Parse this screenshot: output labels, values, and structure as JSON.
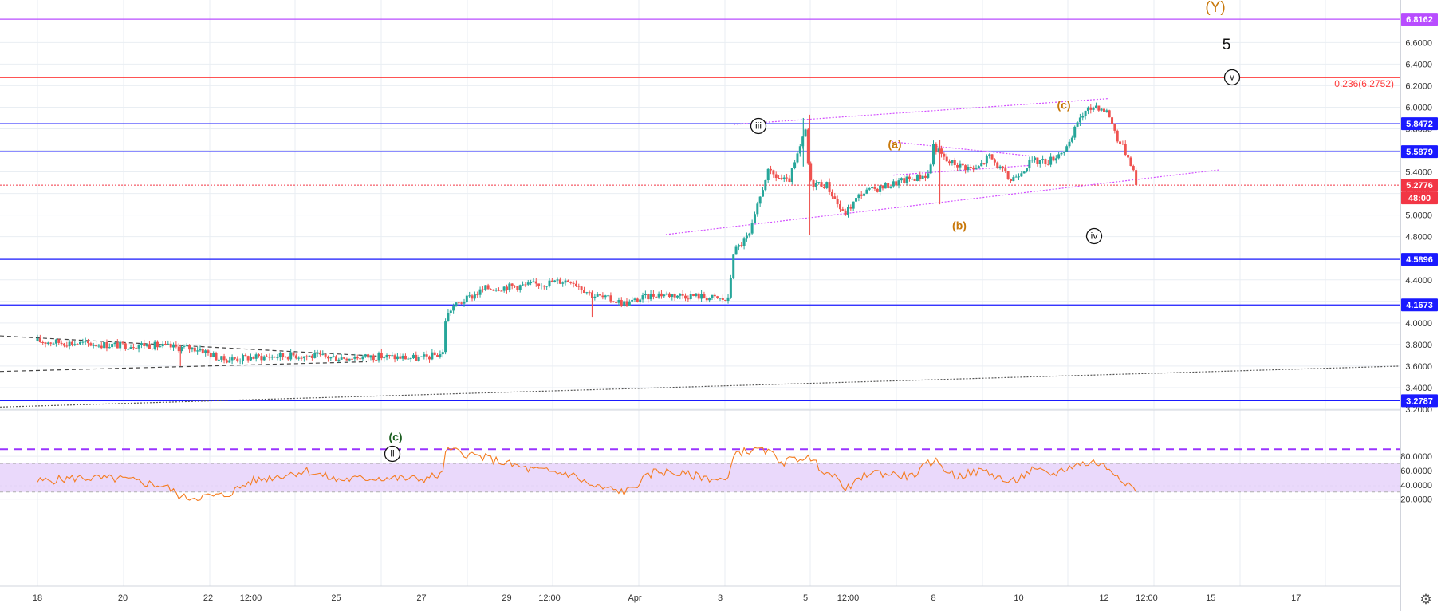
{
  "colors": {
    "up": "#26a69a",
    "down": "#ef5350",
    "level_blue": "#1a1aff",
    "level_red": "#ff3b3b",
    "level_purple": "#b84dff",
    "rsi_line": "#f57c20",
    "rsi_band": "#ead9fb",
    "wave_orange": "#c8780a",
    "trendline_magenta": "#d24dff",
    "grid": "#e9eef3",
    "last_price": "#f23645"
  },
  "icons": {
    "settings": "gear-icon"
  },
  "price_axis": {
    "min": 3.2,
    "max": 6.8,
    "ticks": [
      "3.2000",
      "3.4000",
      "3.6000",
      "3.8000",
      "4.0000",
      "4.2000",
      "4.4000",
      "4.6000",
      "4.8000",
      "5.0000",
      "5.2000",
      "5.4000",
      "5.6000",
      "5.8000",
      "6.0000",
      "6.2000",
      "6.4000",
      "6.6000"
    ]
  },
  "rsi_axis": {
    "min": 15,
    "max": 95,
    "ticks": [
      "20.0000",
      "40.0000",
      "60.0000",
      "80.0000"
    ]
  },
  "levels": [
    {
      "label": "6.8162",
      "value": 6.8162,
      "color": "#b84dff",
      "text_color": "#ffffff"
    },
    {
      "label": "5.8472",
      "value": 5.8472,
      "color": "#1a1aff",
      "text_color": "#ffffff"
    },
    {
      "label": "5.5879",
      "value": 5.5879,
      "color": "#1a1aff",
      "text_color": "#ffffff"
    },
    {
      "label": "4.5896",
      "value": 4.5896,
      "color": "#1a1aff",
      "text_color": "#ffffff"
    },
    {
      "label": "4.1673",
      "value": 4.1673,
      "color": "#1a1aff",
      "text_color": "#ffffff"
    },
    {
      "label": "3.2787",
      "value": 3.2787,
      "color": "#1a1aff",
      "text_color": "#ffffff"
    }
  ],
  "fib_level": {
    "value": 6.2752,
    "label": "0.236(6.2752)"
  },
  "last_price": {
    "value": 5.2776,
    "label": "5.2776",
    "countdown": "48:00"
  },
  "time_axis": {
    "labels": [
      "18",
      "20",
      "22",
      "12:00",
      "25",
      "27",
      "29",
      "12:00",
      "Apr",
      "3",
      "5",
      "12:00",
      "8",
      "10",
      "12",
      "12:00",
      "15",
      "17"
    ],
    "positions": [
      0.5,
      2.5,
      4.5,
      5.5,
      7.5,
      9.5,
      11.5,
      12.5,
      14.5,
      16.5,
      18.5,
      19.5,
      21.5,
      23.5,
      25.5,
      26.5,
      28.0,
      30.0
    ]
  },
  "wave_labels": {
    "Y": "(Y)",
    "five": "5",
    "v": "v",
    "iii": "iii",
    "iv": "iv",
    "ii": "ii",
    "a": "(a)",
    "b": "(b)",
    "c_top": "(c)",
    "c_bottom": "(c)"
  },
  "chart_data": {
    "type": "candlestick",
    "price_panel": {
      "ylim": [
        3.2,
        6.8
      ],
      "grid": true,
      "path_keypoints": [
        {
          "t": 0.0,
          "v": 3.83
        },
        {
          "t": 1.0,
          "v": 3.81
        },
        {
          "t": 2.0,
          "v": 3.79
        },
        {
          "t": 2.5,
          "v": 3.8
        },
        {
          "t": 3.0,
          "v": 3.78
        },
        {
          "t": 3.8,
          "v": 3.76
        },
        {
          "t": 4.3,
          "v": 3.66
        },
        {
          "t": 5.0,
          "v": 3.68
        },
        {
          "t": 6.0,
          "v": 3.7
        },
        {
          "t": 7.0,
          "v": 3.68
        },
        {
          "t": 8.0,
          "v": 3.69
        },
        {
          "t": 9.0,
          "v": 3.67
        },
        {
          "t": 9.5,
          "v": 3.72
        },
        {
          "t": 9.55,
          "v": 4.02
        },
        {
          "t": 9.7,
          "v": 4.14
        },
        {
          "t": 10.5,
          "v": 4.32
        },
        {
          "t": 11.5,
          "v": 4.35
        },
        {
          "t": 12.5,
          "v": 4.4
        },
        {
          "t": 13.0,
          "v": 4.26
        },
        {
          "t": 13.8,
          "v": 4.18
        },
        {
          "t": 14.5,
          "v": 4.27
        },
        {
          "t": 15.5,
          "v": 4.25
        },
        {
          "t": 16.2,
          "v": 4.21
        },
        {
          "t": 16.3,
          "v": 4.65
        },
        {
          "t": 16.7,
          "v": 4.82
        },
        {
          "t": 17.1,
          "v": 5.4
        },
        {
          "t": 17.6,
          "v": 5.3
        },
        {
          "t": 17.9,
          "v": 5.65
        },
        {
          "t": 18.0,
          "v": 5.78
        },
        {
          "t": 18.1,
          "v": 5.3
        },
        {
          "t": 18.5,
          "v": 5.28
        },
        {
          "t": 18.9,
          "v": 5.0
        },
        {
          "t": 19.3,
          "v": 5.2
        },
        {
          "t": 20.3,
          "v": 5.32
        },
        {
          "t": 20.9,
          "v": 5.38
        },
        {
          "t": 21.0,
          "v": 5.65
        },
        {
          "t": 21.3,
          "v": 5.5
        },
        {
          "t": 22.0,
          "v": 5.42
        },
        {
          "t": 22.3,
          "v": 5.55
        },
        {
          "t": 22.8,
          "v": 5.32
        },
        {
          "t": 23.3,
          "v": 5.5
        },
        {
          "t": 23.7,
          "v": 5.5
        },
        {
          "t": 24.2,
          "v": 5.65
        },
        {
          "t": 24.4,
          "v": 5.9
        },
        {
          "t": 24.8,
          "v": 6.02
        },
        {
          "t": 25.1,
          "v": 5.95
        },
        {
          "t": 25.3,
          "v": 5.72
        },
        {
          "t": 25.6,
          "v": 5.52
        },
        {
          "t": 25.75,
          "v": 5.33
        },
        {
          "t": 25.8,
          "v": 5.2776
        }
      ]
    },
    "rsi_panel": {
      "ylim": [
        15,
        95
      ],
      "band": [
        30,
        70
      ],
      "overbought_dashed": 90,
      "path_keypoints": [
        {
          "t": 0.0,
          "v": 45
        },
        {
          "t": 1.0,
          "v": 50
        },
        {
          "t": 2.0,
          "v": 48
        },
        {
          "t": 3.0,
          "v": 38
        },
        {
          "t": 3.4,
          "v": 22
        },
        {
          "t": 4.4,
          "v": 25
        },
        {
          "t": 5.0,
          "v": 45
        },
        {
          "t": 6.3,
          "v": 60
        },
        {
          "t": 7.0,
          "v": 47
        },
        {
          "t": 8.0,
          "v": 50
        },
        {
          "t": 9.0,
          "v": 48
        },
        {
          "t": 9.5,
          "v": 55
        },
        {
          "t": 9.55,
          "v": 90
        },
        {
          "t": 10.5,
          "v": 78
        },
        {
          "t": 11.5,
          "v": 62
        },
        {
          "t": 12.5,
          "v": 55
        },
        {
          "t": 13.0,
          "v": 38
        },
        {
          "t": 13.8,
          "v": 30
        },
        {
          "t": 14.5,
          "v": 60
        },
        {
          "t": 15.5,
          "v": 52
        },
        {
          "t": 16.2,
          "v": 45
        },
        {
          "t": 16.3,
          "v": 85
        },
        {
          "t": 17.0,
          "v": 90
        },
        {
          "t": 17.5,
          "v": 72
        },
        {
          "t": 18.0,
          "v": 80
        },
        {
          "t": 18.5,
          "v": 58
        },
        {
          "t": 19.0,
          "v": 35
        },
        {
          "t": 19.5,
          "v": 58
        },
        {
          "t": 20.5,
          "v": 52
        },
        {
          "t": 21.0,
          "v": 75
        },
        {
          "t": 21.5,
          "v": 52
        },
        {
          "t": 22.2,
          "v": 60
        },
        {
          "t": 22.8,
          "v": 42
        },
        {
          "t": 23.3,
          "v": 60
        },
        {
          "t": 23.8,
          "v": 55
        },
        {
          "t": 24.3,
          "v": 68
        },
        {
          "t": 24.8,
          "v": 72
        },
        {
          "t": 25.2,
          "v": 60
        },
        {
          "t": 25.6,
          "v": 40
        },
        {
          "t": 25.8,
          "v": 28
        }
      ]
    }
  }
}
